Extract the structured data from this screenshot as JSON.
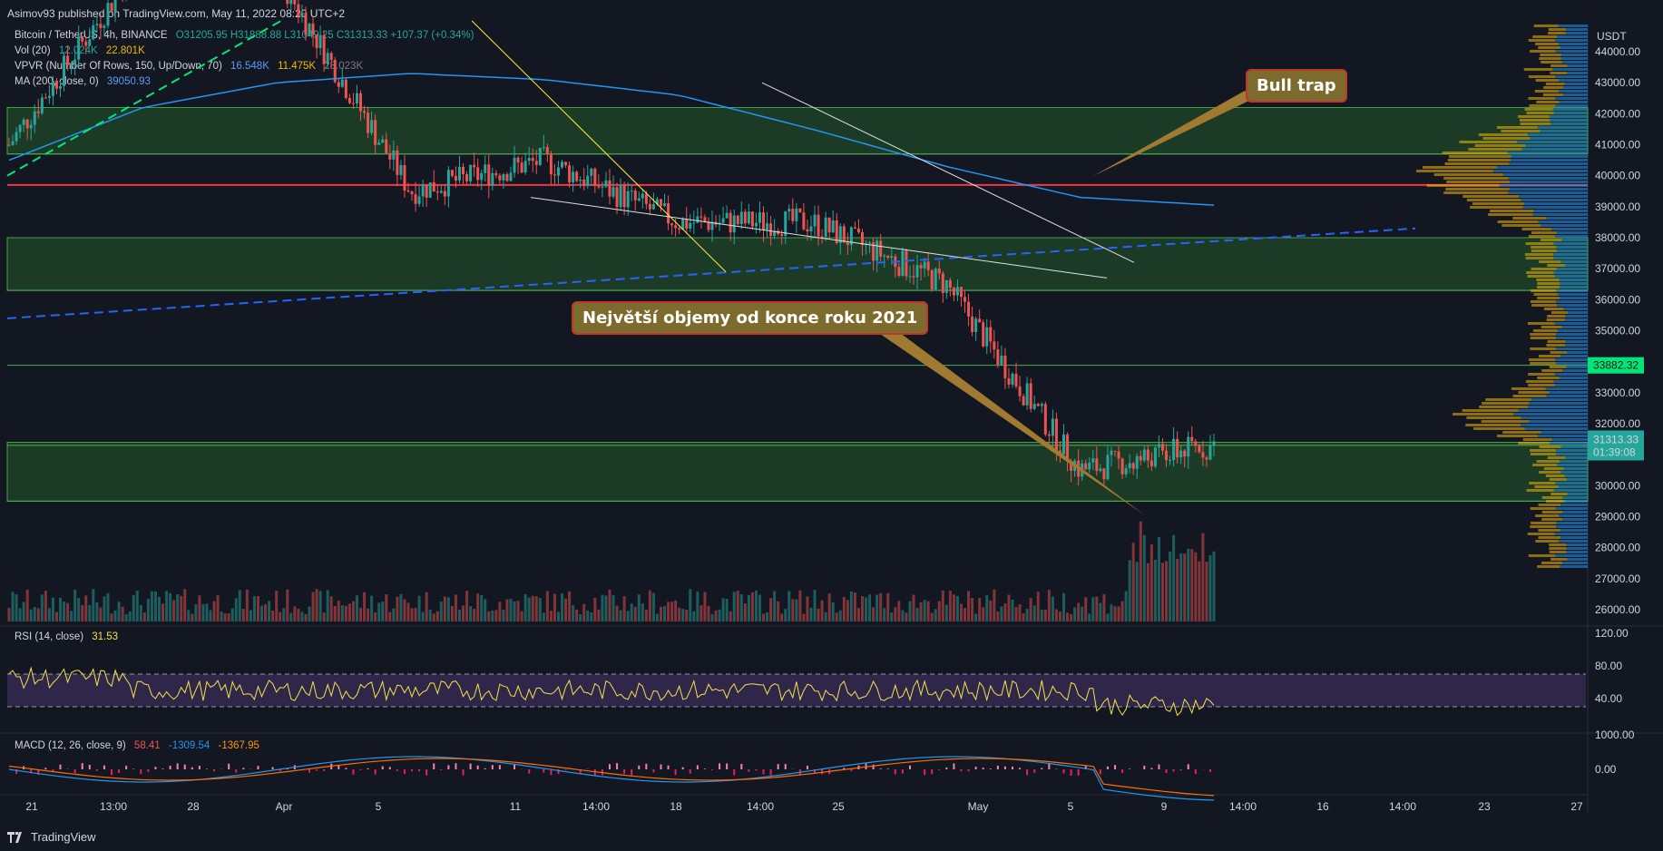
{
  "header": {
    "published": "Asimov93 published on TradingView.com, May 11, 2022 08:20 UTC+2"
  },
  "legend": {
    "symbol": "Bitcoin / TetherUS, 4h, BINANCE",
    "ohlc": "O31205.95  H31888.88  L31049.25  C31313.33  +107.37 (+0.34%)",
    "vol_label": "Vol (20)",
    "vol_value_1": "12.024K",
    "vol_value_2": "22.801K",
    "vpvr_label": "VPVR (Number Of Rows, 150, Up/Down, 70)",
    "vpvr_v1": "16.548K",
    "vpvr_v2": "11.475K",
    "vpvr_v3": "28.023K",
    "ma_label": "MA (200, close, 0)",
    "ma_value": "39050.93",
    "rsi_label": "RSI (14, close)",
    "rsi_value": "31.53",
    "macd_label": "MACD (12, 26, close, 9)",
    "macd_v1": "58.41",
    "macd_v2": "-1309.54",
    "macd_v3": "-1367.95"
  },
  "annotations": {
    "bull_trap": "Bull trap",
    "volumes": "Největší objemy od konce roku 2021"
  },
  "price_axis": {
    "currency": "USDT",
    "ticks": [
      "44000.00",
      "43000.00",
      "42000.00",
      "41000.00",
      "40000.00",
      "39000.00",
      "38000.00",
      "37000.00",
      "36000.00",
      "35000.00",
      "34000.00",
      "33000.00",
      "32000.00",
      "31000.00",
      "30000.00",
      "29000.00",
      "28000.00",
      "27000.00",
      "26000.00"
    ],
    "level_label": "33882.32",
    "last_price": "31313.33",
    "countdown": "01:39:08"
  },
  "rsi_axis": {
    "ticks": [
      "120.00",
      "80.00",
      "40.00"
    ]
  },
  "macd_axis": {
    "ticks": [
      "1000.00",
      "0.00"
    ]
  },
  "time_axis": {
    "labels": [
      "21",
      "13:00",
      "28",
      "Apr",
      "5",
      "11",
      "14:00",
      "18",
      "14:00",
      "25",
      "May",
      "5",
      "9",
      "14:00",
      "16",
      "14:00",
      "23",
      "27"
    ]
  },
  "footer": {
    "brand": "TradingView"
  },
  "colors": {
    "background": "#131722",
    "up": "#26a69a",
    "down": "#ef5350",
    "zone": "#1e5a2a",
    "ma": "#2196f3",
    "red_level": "#f23645"
  },
  "chart_data": {
    "type": "line",
    "description_series": "BTC/USDT 4h close (approximate)",
    "x": [
      "Mar 21",
      "Mar 28",
      "Apr 4",
      "Apr 11",
      "Apr 18",
      "Apr 25",
      "May 2",
      "May 5",
      "May 9",
      "May 11"
    ],
    "series": [
      {
        "name": "Bitcoin / TetherUS",
        "values": [
          41000,
          47000,
          46500,
          39500,
          40500,
          38500,
          38500,
          36500,
          30500,
          31313
        ]
      },
      {
        "name": "MA (200, close, 0)",
        "values": [
          40500,
          42200,
          43000,
          43300,
          43100,
          42600,
          41500,
          40300,
          39300,
          39050
        ]
      }
    ],
    "horizontal_levels": [
      40700,
      39700,
      36300,
      33882.32,
      31300,
      29500
    ],
    "zones": [
      [
        40700,
        42200
      ],
      [
        36300,
        38000
      ],
      [
        29500,
        31400
      ]
    ],
    "rsi": {
      "ylim": [
        0,
        120
      ],
      "bands": [
        30,
        70
      ],
      "last": 31.53
    },
    "ylim": [
      25600,
      44600
    ]
  }
}
